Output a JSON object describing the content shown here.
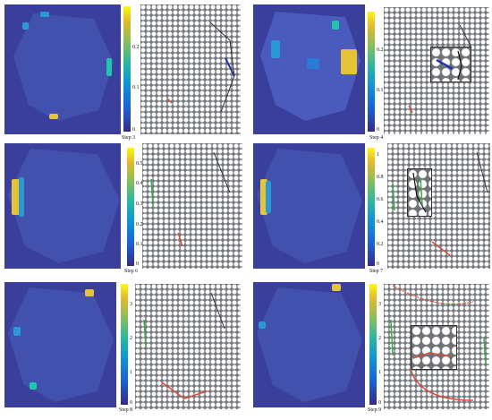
{
  "panels": [
    {
      "step_label": "Step 3",
      "ticks": [
        "0.2",
        "0.1",
        "0"
      ]
    },
    {
      "step_label": "Step 4",
      "ticks": [
        "0.2",
        "0.1",
        "0"
      ]
    },
    {
      "step_label": "Step 6",
      "ticks": [
        "0.5",
        "0.4",
        "0.3",
        "0.2",
        "0.1",
        "0"
      ]
    },
    {
      "step_label": "Step 7",
      "ticks": [
        "1",
        "0.8",
        "0.6",
        "0.4",
        "0.2",
        "0"
      ]
    },
    {
      "step_label": "Step 8",
      "ticks": [
        "3",
        "2",
        "1",
        "0"
      ]
    },
    {
      "step_label": "Step 9",
      "ticks": [
        "3",
        "2",
        "1",
        "0"
      ]
    }
  ],
  "colors": {
    "heatmap_low": "#3b3f9c",
    "heatmap_high": "#f9fb0e",
    "maze_wall": "#777b80",
    "maze_cell": "#ffffff",
    "path_red": "#d94a3a",
    "path_green": "#3aa845",
    "arrow_blue": "#2233aa"
  }
}
